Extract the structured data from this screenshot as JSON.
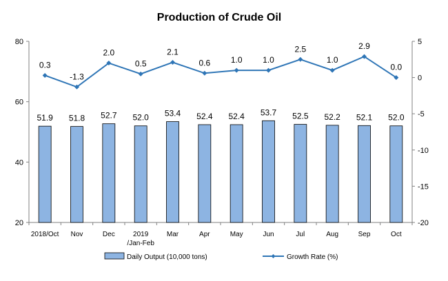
{
  "chart_data": {
    "type": "bar",
    "title": "Production of Crude Oil",
    "categories": [
      "2018/Oct",
      "Nov",
      "Dec",
      "2019 /Jan-Feb",
      "Mar",
      "Apr",
      "May",
      "Jun",
      "Jul",
      "Aug",
      "Sep",
      "Oct"
    ],
    "series": [
      {
        "name": "Daily Output (10,000 tons)",
        "type": "bar",
        "axis": "left",
        "color": "#8db4e2",
        "values": [
          51.9,
          51.8,
          52.7,
          52.0,
          53.4,
          52.4,
          52.4,
          53.7,
          52.5,
          52.2,
          52.1,
          52.0
        ],
        "labels": [
          "51.9",
          "51.8",
          "52.7",
          "52.0",
          "53.4",
          "52.4",
          "52.4",
          "53.7",
          "52.5",
          "52.2",
          "52.1",
          "52.0"
        ]
      },
      {
        "name": "Growth Rate (%)",
        "type": "line",
        "axis": "right",
        "color": "#2e75b6",
        "values": [
          0.3,
          -1.3,
          2.0,
          0.5,
          2.1,
          0.6,
          1.0,
          1.0,
          2.5,
          1.0,
          2.9,
          0.0
        ],
        "labels": [
          "0.3",
          "-1.3",
          "2.0",
          "0.5",
          "2.1",
          "0.6",
          "1.0",
          "1.0",
          "2.5",
          "1.0",
          "2.9",
          "0.0"
        ]
      }
    ],
    "y_left": {
      "min": 20,
      "max": 80,
      "ticks": [
        20,
        40,
        60,
        80
      ]
    },
    "y_right": {
      "min": -20,
      "max": 5,
      "ticks": [
        -20,
        -15,
        -10,
        -5,
        0,
        5
      ]
    },
    "grid": false,
    "legend_position": "bottom"
  }
}
